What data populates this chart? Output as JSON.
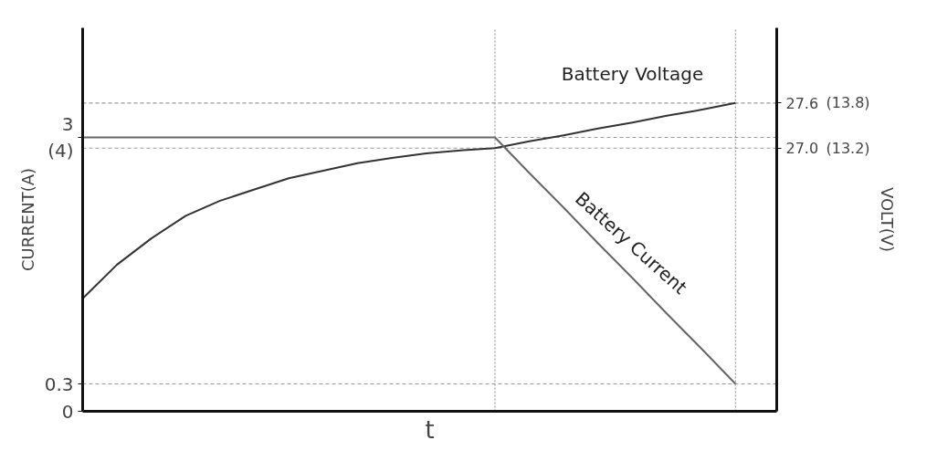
{
  "chart_data": {
    "type": "line",
    "xlabel": "t",
    "ylabel": "CURRENT(A)",
    "y2label": "VOLT(V)",
    "categories": [
      null,
      null,
      null,
      null,
      null,
      null,
      null,
      null,
      null,
      null,
      null,
      null,
      null,
      null,
      null,
      null,
      null,
      null,
      null,
      null
    ],
    "ylim": [
      0,
      4.2
    ],
    "yticks": [
      0,
      0.3,
      {
        "value": 3,
        "label": "3\n(4)"
      }
    ],
    "y2lim": [
      23.5,
      28.6
    ],
    "y2ticks": [
      27.6,
      {
        "value": 27.0,
        "label": "27.0"
      }
    ],
    "annotations": [
      "(13.8)",
      "(13.2)"
    ],
    "series": [
      {
        "name": "Battery Voltage",
        "color": "#333333",
        "axis": "y2",
        "values": [
          25.0,
          25.45,
          25.8,
          26.1,
          26.3,
          26.45,
          26.6,
          26.7,
          26.8,
          26.87,
          26.93,
          26.97,
          27.0,
          27.09,
          27.17,
          27.26,
          27.34,
          27.43,
          27.51,
          27.6
        ]
      },
      {
        "name": "Battery Current",
        "color": "#666666",
        "axis": "y",
        "values": [
          3,
          3,
          3,
          3,
          3,
          3,
          3,
          3,
          3,
          3,
          3,
          3,
          3,
          2.61,
          2.23,
          1.84,
          1.46,
          1.07,
          0.69,
          0.3
        ]
      }
    ],
    "grid": "y",
    "marker": "none",
    "line_style": "solid"
  }
}
